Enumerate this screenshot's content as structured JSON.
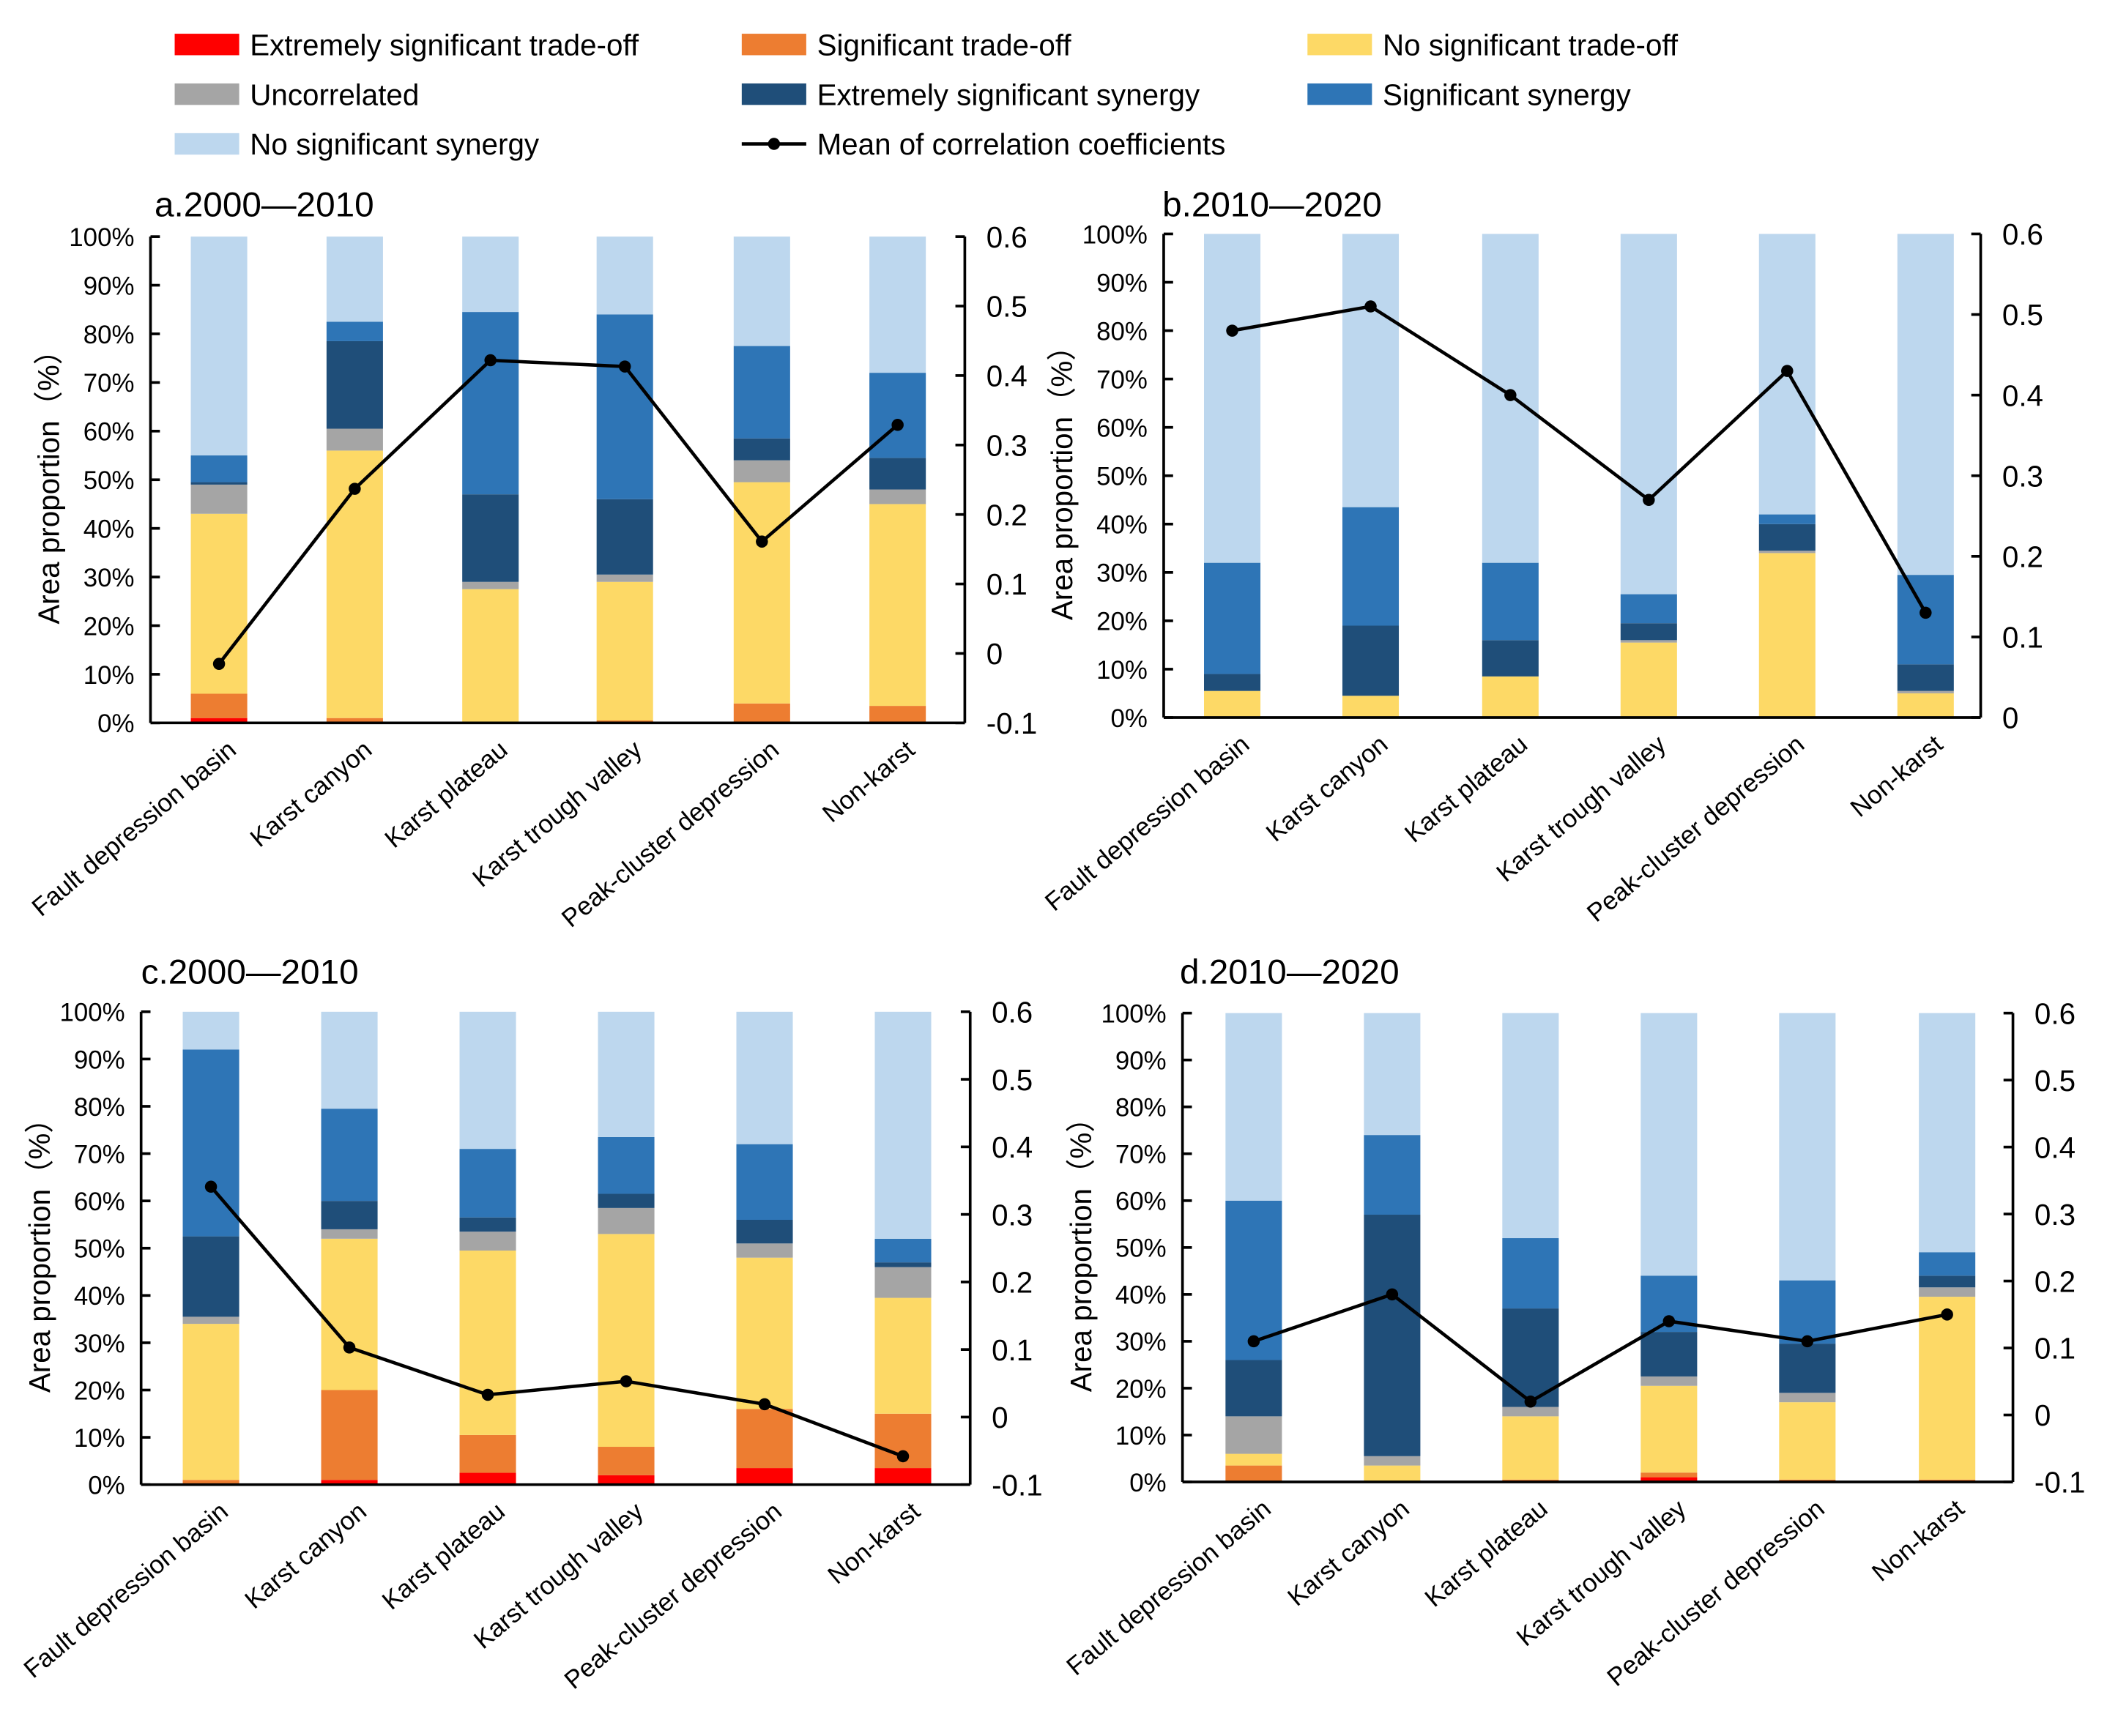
{
  "legend": [
    {
      "label": "Extremely significant trade-off",
      "color": "#FF0000",
      "kind": "box"
    },
    {
      "label": "Significant trade-off",
      "color": "#ED7D31",
      "kind": "box"
    },
    {
      "label": "No significant trade-off",
      "color": "#FDD966",
      "kind": "box"
    },
    {
      "label": "Uncorrelated",
      "color": "#A5A5A5",
      "kind": "box"
    },
    {
      "label": "Extremely significant synergy",
      "color": "#1F4E79",
      "kind": "box"
    },
    {
      "label": "Significant synergy",
      "color": "#2E75B6",
      "kind": "box"
    },
    {
      "label": "No significant synergy",
      "color": "#BDD7EE",
      "kind": "box"
    },
    {
      "label": "Mean of correlation coefficients",
      "color": "#000000",
      "kind": "line"
    }
  ],
  "chart_data": [
    {
      "type": "bar",
      "stacked": true,
      "title": "a.2000—2010",
      "ylabel": "Area proportion（%）",
      "ylim": [
        0,
        100
      ],
      "y_ticks": [
        "0%",
        "10%",
        "20%",
        "30%",
        "40%",
        "50%",
        "60%",
        "70%",
        "80%",
        "90%",
        "100%"
      ],
      "y2lim": [
        -0.1,
        0.6
      ],
      "y2_ticks": [
        "-0.1",
        "0",
        "0.1",
        "0.2",
        "0.3",
        "0.4",
        "0.5",
        "0.6"
      ],
      "categories": [
        "Fault depression basin",
        "Karst canyon",
        "Karst plateau",
        "Karst trough valley",
        "Peak-cluster depression",
        "Non-karst"
      ],
      "series": [
        {
          "name": "Extremely significant trade-off",
          "values": [
            1,
            0,
            0,
            0,
            0,
            0
          ]
        },
        {
          "name": "Significant trade-off",
          "values": [
            5,
            1,
            0,
            0.5,
            4,
            3.5
          ]
        },
        {
          "name": "No significant trade-off",
          "values": [
            37,
            55,
            27.5,
            28.5,
            45.5,
            41.5
          ]
        },
        {
          "name": "Uncorrelated",
          "values": [
            6,
            4.5,
            1.5,
            1.5,
            4.5,
            3
          ]
        },
        {
          "name": "Extremely significant synergy",
          "values": [
            0.5,
            18,
            18,
            15.5,
            4.5,
            6.5
          ]
        },
        {
          "name": "Significant synergy",
          "values": [
            5.5,
            4,
            37.5,
            38,
            19,
            17.5
          ]
        },
        {
          "name": "No significant synergy",
          "values": [
            45,
            17.5,
            15.5,
            16,
            22.5,
            28
          ]
        }
      ],
      "line": {
        "name": "Mean of correlation coefficients",
        "values": [
          -0.015,
          0.237,
          0.422,
          0.413,
          0.161,
          0.329
        ]
      }
    },
    {
      "type": "bar",
      "stacked": true,
      "title": "b.2010—2020",
      "ylabel": "Area proportion（%）",
      "ylim": [
        0,
        100
      ],
      "y_ticks": [
        "0%",
        "10%",
        "20%",
        "30%",
        "40%",
        "50%",
        "60%",
        "70%",
        "80%",
        "90%",
        "100%"
      ],
      "y2lim": [
        0,
        0.6
      ],
      "y2_ticks": [
        "0",
        "0.1",
        "0.2",
        "0.3",
        "0.4",
        "0.5",
        "0.6"
      ],
      "categories": [
        "Fault depression basin",
        "Karst canyon",
        "Karst plateau",
        "Karst trough valley",
        "Peak-cluster depression",
        "Non-karst"
      ],
      "series": [
        {
          "name": "Extremely significant trade-off",
          "values": [
            0,
            0,
            0,
            0,
            0,
            0
          ]
        },
        {
          "name": "Significant trade-off",
          "values": [
            0,
            0,
            0,
            0,
            0,
            0
          ]
        },
        {
          "name": "No significant trade-off",
          "values": [
            5.5,
            4.5,
            8.5,
            15.5,
            34,
            5
          ]
        },
        {
          "name": "Uncorrelated",
          "values": [
            0,
            0,
            0,
            0.5,
            0.5,
            0.5
          ]
        },
        {
          "name": "Extremely significant synergy",
          "values": [
            3.5,
            14.5,
            7.5,
            3.5,
            5.5,
            5.5
          ]
        },
        {
          "name": "Significant synergy",
          "values": [
            23,
            24.5,
            16,
            6,
            2,
            18.5
          ]
        },
        {
          "name": "No significant synergy",
          "values": [
            68,
            56.5,
            68,
            74.5,
            58,
            70.5
          ]
        }
      ],
      "line": {
        "name": "Mean of correlation coefficients",
        "values": [
          0.48,
          0.51,
          0.4,
          0.27,
          0.43,
          0.13
        ]
      }
    },
    {
      "type": "bar",
      "stacked": true,
      "title": "c.2000—2010",
      "ylabel": "Area proportion（%）",
      "ylim": [
        0,
        100
      ],
      "y_ticks": [
        "0%",
        "10%",
        "20%",
        "30%",
        "40%",
        "50%",
        "60%",
        "70%",
        "80%",
        "90%",
        "100%"
      ],
      "y2lim": [
        -0.1,
        0.6
      ],
      "y2_ticks": [
        "-0.1",
        "0",
        "0.1",
        "0.2",
        "0.3",
        "0.4",
        "0.5",
        "0.6"
      ],
      "categories": [
        "Fault depression basin",
        "Karst canyon",
        "Karst plateau",
        "Karst trough valley",
        "Peak-cluster depression",
        "Non-karst"
      ],
      "series": [
        {
          "name": "Extremely significant trade-off",
          "values": [
            0,
            1,
            2.5,
            2,
            3.5,
            3.5
          ]
        },
        {
          "name": "Significant trade-off",
          "values": [
            1,
            19,
            8,
            6,
            12.5,
            11.5
          ]
        },
        {
          "name": "No significant trade-off",
          "values": [
            33,
            32,
            39,
            45,
            32,
            24.5
          ]
        },
        {
          "name": "Uncorrelated",
          "values": [
            1.5,
            2,
            4,
            5.5,
            3,
            6.5
          ]
        },
        {
          "name": "Extremely significant synergy",
          "values": [
            17,
            6,
            3,
            3,
            5,
            1
          ]
        },
        {
          "name": "Significant synergy",
          "values": [
            39.5,
            19.5,
            14.5,
            12,
            16,
            5
          ]
        },
        {
          "name": "No significant synergy",
          "values": [
            8,
            20.5,
            29,
            26.5,
            28,
            48
          ]
        }
      ],
      "line": {
        "name": "Mean of correlation coefficients",
        "values": [
          0.341,
          0.103,
          0.033,
          0.053,
          0.019,
          -0.058
        ]
      }
    },
    {
      "type": "bar",
      "stacked": true,
      "title": "d.2010—2020",
      "ylabel": "Area proportion（%）",
      "ylim": [
        0,
        100
      ],
      "y_ticks": [
        "0%",
        "10%",
        "20%",
        "30%",
        "40%",
        "50%",
        "60%",
        "70%",
        "80%",
        "90%",
        "100%"
      ],
      "y2lim": [
        -0.1,
        0.6
      ],
      "y2_ticks": [
        "-0.1",
        "0",
        "0.1",
        "0.2",
        "0.3",
        "0.4",
        "0.5",
        "0.6"
      ],
      "categories": [
        "Fault depression basin",
        "Karst canyon",
        "Karst plateau",
        "Karst trough valley",
        "Peak-cluster depression",
        "Non-karst"
      ],
      "series": [
        {
          "name": "Extremely significant trade-off",
          "values": [
            0,
            0,
            0,
            1,
            0,
            0
          ]
        },
        {
          "name": "Significant trade-off",
          "values": [
            3.5,
            0,
            0.5,
            1,
            0.5,
            0.5
          ]
        },
        {
          "name": "No significant trade-off",
          "values": [
            2.5,
            3.5,
            13.5,
            18.5,
            16.5,
            39
          ]
        },
        {
          "name": "Uncorrelated",
          "values": [
            8,
            2,
            2,
            2,
            2,
            2
          ]
        },
        {
          "name": "Extremely significant synergy",
          "values": [
            12,
            51.5,
            21,
            9.5,
            10.5,
            2.5
          ]
        },
        {
          "name": "Significant synergy",
          "values": [
            34,
            17,
            15,
            12,
            13.5,
            5
          ]
        },
        {
          "name": "No significant synergy",
          "values": [
            40,
            26,
            48,
            56,
            57,
            51
          ]
        }
      ],
      "line": {
        "name": "Mean of correlation coefficients",
        "values": [
          0.11,
          0.18,
          0.02,
          0.14,
          0.11,
          0.15
        ]
      }
    }
  ]
}
